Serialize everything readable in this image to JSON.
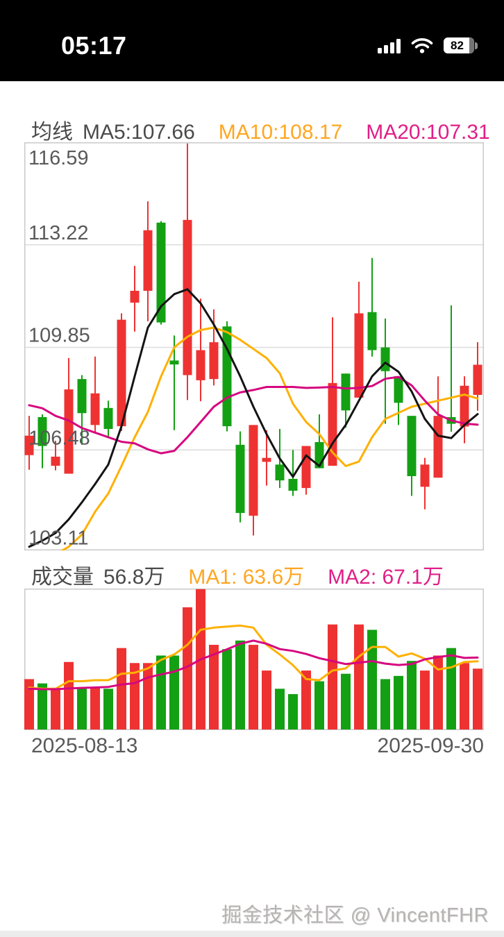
{
  "status_bar": {
    "time": "05:17",
    "battery_level": "82"
  },
  "kline_header": {
    "title": "均线",
    "ma5": "MA5:107.66",
    "ma10": "MA10:108.17",
    "ma20": "MA20:107.31"
  },
  "volume_header": {
    "title": "成交量",
    "current": "56.8万",
    "ma1": "MA1: 63.6万",
    "ma2": "MA2: 67.1万"
  },
  "x_axis": {
    "start_date": "2025-08-13",
    "end_date": "2025-09-30"
  },
  "watermark": "掘金技术社区 @ VincentFHR",
  "colors": {
    "up": "#ee3232",
    "down": "#13a013",
    "ma5": "#141414",
    "ma10": "#ffb000",
    "ma20": "#d6067f",
    "grid": "#dcdcdc",
    "border": "#c9c9c9",
    "tick_text": "#595959"
  },
  "chart_data": [
    {
      "type": "candlestick",
      "panel": "price",
      "title": "均线",
      "legend": [
        "MA5",
        "MA10",
        "MA20"
      ],
      "y_ticks": [
        116.59,
        113.22,
        109.85,
        106.48,
        103.11
      ],
      "ylim": [
        103.18,
        116.59
      ],
      "x_range": [
        "2025-08-13",
        "2025-09-30"
      ],
      "grid": true,
      "candles_ohlc": [
        [
          106.31,
          107.6,
          105.83,
          106.95
        ],
        [
          107.56,
          107.65,
          105.88,
          106.61
        ],
        [
          105.96,
          106.78,
          105.81,
          106.26
        ],
        [
          105.7,
          109.5,
          105.7,
          108.47
        ],
        [
          108.81,
          108.94,
          106.65,
          107.69
        ],
        [
          107.3,
          109.55,
          107.05,
          108.34
        ],
        [
          107.86,
          108.1,
          106.9,
          107.17
        ],
        [
          107.26,
          110.97,
          107.1,
          110.76
        ],
        [
          111.32,
          112.53,
          110.37,
          111.71
        ],
        [
          111.71,
          114.65,
          110.71,
          113.7
        ],
        [
          113.95,
          114.0,
          110.6,
          110.67
        ],
        [
          109.42,
          110.24,
          107.13,
          109.29
        ],
        [
          108.94,
          116.55,
          108.12,
          114.04
        ],
        [
          108.77,
          111.45,
          108.08,
          109.76
        ],
        [
          108.81,
          111.1,
          108.6,
          110.02
        ],
        [
          110.54,
          110.71,
          107.09,
          107.26
        ],
        [
          106.65,
          107.09,
          104.1,
          104.41
        ],
        [
          104.32,
          107.3,
          103.67,
          107.3
        ],
        [
          106.09,
          107.13,
          105.31,
          106.22
        ],
        [
          106.0,
          107.17,
          105.23,
          105.48
        ],
        [
          105.53,
          106.48,
          104.97,
          105.14
        ],
        [
          105.23,
          106.61,
          105.01,
          106.61
        ],
        [
          106.74,
          107.65,
          105.88,
          105.88
        ],
        [
          105.96,
          110.84,
          105.96,
          108.68
        ],
        [
          108.99,
          108.99,
          107.21,
          107.78
        ],
        [
          108.2,
          112.01,
          108.2,
          110.97
        ],
        [
          111.01,
          112.79,
          109.55,
          109.76
        ],
        [
          109.85,
          110.8,
          107.34,
          109.07
        ],
        [
          108.9,
          108.9,
          107.3,
          108.03
        ],
        [
          107.6,
          107.6,
          104.97,
          105.62
        ],
        [
          105.27,
          106.22,
          104.53,
          106.0
        ],
        [
          105.57,
          108.9,
          105.57,
          107.6
        ],
        [
          107.56,
          111.23,
          107.08,
          107.34
        ],
        [
          107.25,
          108.9,
          106.7,
          108.59
        ],
        [
          108.29,
          110.02,
          107.77,
          109.28
        ]
      ],
      "overlays": [
        {
          "name": "MA5",
          "color": "#141414",
          "values": [
            103.3,
            103.5,
            103.75,
            104.2,
            104.76,
            105.36,
            106.0,
            107.26,
            108.9,
            110.5,
            111.2,
            111.6,
            111.76,
            111.3,
            110.6,
            109.8,
            108.9,
            107.9,
            107.0,
            106.2,
            105.6,
            106.3,
            105.95,
            106.7,
            107.3,
            108.1,
            108.9,
            109.35,
            109.05,
            108.4,
            107.5,
            106.95,
            106.87,
            107.3,
            107.66
          ]
        },
        {
          "name": "MA10",
          "color": "#ffb000",
          "values": [
            102.9,
            102.95,
            103.05,
            103.3,
            103.7,
            104.45,
            105.05,
            105.95,
            106.9,
            107.73,
            108.9,
            109.85,
            110.2,
            110.42,
            110.5,
            110.35,
            110.1,
            109.8,
            109.5,
            109.0,
            108.0,
            107.4,
            107.0,
            106.4,
            105.95,
            106.1,
            106.9,
            107.5,
            107.7,
            107.9,
            108.0,
            108.1,
            108.2,
            108.3,
            108.17
          ]
        },
        {
          "name": "MA20",
          "color": "#d6067f",
          "values": [
            107.95,
            107.85,
            107.6,
            107.45,
            107.2,
            107.05,
            106.9,
            106.75,
            106.7,
            106.5,
            106.37,
            106.45,
            106.9,
            107.4,
            107.9,
            108.2,
            108.37,
            108.45,
            108.55,
            108.55,
            108.55,
            108.52,
            108.53,
            108.55,
            108.5,
            108.52,
            108.58,
            108.82,
            108.88,
            108.6,
            108.1,
            107.65,
            107.45,
            107.35,
            107.31
          ]
        }
      ]
    },
    {
      "type": "bar",
      "panel": "volume",
      "title": "成交量",
      "unit": "万",
      "ylim": [
        0,
        131.5
      ],
      "current_value": 56.8,
      "colors_follow_candles": true,
      "values": [
        47,
        43,
        38,
        63,
        38,
        39,
        38,
        76,
        62,
        62,
        69,
        69,
        114,
        131,
        79,
        75,
        83,
        79,
        55,
        38,
        33,
        55,
        45,
        98,
        52,
        98,
        93,
        47,
        50,
        64,
        55,
        69,
        76,
        62,
        56.8
      ],
      "overlays": [
        {
          "name": "MA1",
          "color": "#ffb000",
          "values": [
            39,
            38,
            38,
            45,
            45,
            46,
            46,
            52,
            53,
            57,
            65,
            70,
            79,
            93,
            95,
            96,
            97,
            95,
            79,
            70,
            60,
            47,
            46,
            55,
            57,
            68,
            77,
            77,
            68,
            71,
            66,
            56,
            58,
            63,
            63.6
          ]
        },
        {
          "name": "MA2",
          "color": "#d6067f",
          "values": [
            38,
            37.6,
            37.6,
            38.3,
            38.8,
            39.2,
            39.7,
            42,
            43.3,
            48.5,
            51.4,
            54,
            58.6,
            65.4,
            70,
            74.8,
            80,
            83,
            80,
            75,
            73.3,
            70.5,
            66.5,
            63.8,
            61,
            62.4,
            63.8,
            61.5,
            60.2,
            61,
            65.4,
            67.6,
            69.2,
            66.8,
            67.1
          ]
        }
      ]
    }
  ]
}
